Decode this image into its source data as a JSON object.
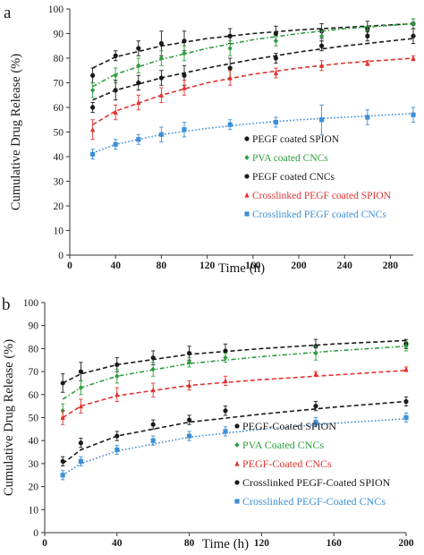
{
  "chart_data": [
    {
      "panel_label": "a",
      "type": "scatter",
      "xlabel": "Time (h)",
      "ylabel": "Cumulative Drug Release (%)",
      "xlim": [
        0,
        300
      ],
      "ylim": [
        0,
        100
      ],
      "xticks": [
        0,
        40,
        80,
        120,
        160,
        200,
        240,
        280
      ],
      "yticks": [
        0,
        10,
        20,
        30,
        40,
        50,
        60,
        70,
        80,
        90,
        100
      ],
      "grid": false,
      "legend_position": "lower-right",
      "series": [
        {
          "name": "PEGF coated SPION",
          "color": "#1a1a1a",
          "marker": "circle",
          "x": [
            20,
            40,
            60,
            80,
            100,
            140,
            180,
            220,
            260,
            300
          ],
          "y": [
            73,
            81,
            84,
            86,
            87,
            89,
            90,
            91,
            92,
            94
          ],
          "err": [
            3,
            2,
            3,
            5,
            4,
            3,
            3,
            3,
            3,
            2
          ],
          "fit": [
            [
              20,
              76
            ],
            [
              40,
              80.5
            ],
            [
              80,
              85
            ],
            [
              120,
              88
            ],
            [
              160,
              90
            ],
            [
              200,
              91.5
            ],
            [
              240,
              92.5
            ],
            [
              300,
              94
            ]
          ]
        },
        {
          "name": "PVA coated CNCs",
          "color": "#2e9e3e",
          "marker": "diamond",
          "x": [
            20,
            40,
            60,
            80,
            100,
            140,
            180,
            220,
            260,
            300
          ],
          "y": [
            67,
            73,
            77,
            80,
            82,
            84,
            87,
            89,
            91,
            94
          ],
          "err": [
            3,
            3,
            3,
            3,
            3,
            3,
            2,
            2,
            2,
            2
          ],
          "fit": [
            [
              20,
              68.5
            ],
            [
              40,
              73.5
            ],
            [
              80,
              79.5
            ],
            [
              120,
              84
            ],
            [
              160,
              87.5
            ],
            [
              200,
              90
            ],
            [
              240,
              92
            ],
            [
              300,
              94
            ]
          ]
        },
        {
          "name": "PEGF coated CNCs",
          "color": "#1a1a1a",
          "marker": "circle",
          "x": [
            20,
            40,
            60,
            80,
            100,
            140,
            180,
            220,
            260,
            300
          ],
          "y": [
            60,
            67,
            70,
            72,
            73,
            76,
            80,
            85,
            89,
            89
          ],
          "err": [
            2,
            4,
            3,
            3,
            4,
            4,
            2,
            2,
            2,
            3
          ],
          "fit": [
            [
              20,
              63
            ],
            [
              40,
              67
            ],
            [
              80,
              72
            ],
            [
              120,
              76
            ],
            [
              160,
              79.5
            ],
            [
              200,
              82.5
            ],
            [
              240,
              85
            ],
            [
              300,
              88
            ]
          ]
        },
        {
          "name": "Crosslinked PEGF coated SPION",
          "color": "#e0332e",
          "marker": "triangle",
          "x": [
            20,
            40,
            60,
            80,
            100,
            140,
            180,
            220,
            260,
            300
          ],
          "y": [
            51,
            58,
            62,
            65,
            68,
            72,
            74,
            77,
            78,
            80
          ],
          "err": [
            4,
            3,
            3,
            3,
            3,
            3,
            2,
            2,
            1,
            1
          ],
          "fit": [
            [
              20,
              53
            ],
            [
              40,
              58.5
            ],
            [
              80,
              65
            ],
            [
              120,
              70
            ],
            [
              160,
              73.5
            ],
            [
              200,
              76
            ],
            [
              240,
              78
            ],
            [
              300,
              80
            ]
          ]
        },
        {
          "name": "Crosslinked PEGF coated CNCs",
          "color": "#3d8fd6",
          "marker": "square",
          "x": [
            20,
            40,
            60,
            80,
            100,
            140,
            180,
            220,
            260,
            300
          ],
          "y": [
            41,
            45,
            47,
            49,
            51,
            53,
            54,
            55,
            56,
            57
          ],
          "err": [
            2,
            2,
            2,
            3,
            3,
            2,
            2,
            6,
            3,
            3
          ],
          "fit": [
            [
              20,
              41.5
            ],
            [
              40,
              45
            ],
            [
              80,
              49
            ],
            [
              120,
              51.5
            ],
            [
              160,
              53.5
            ],
            [
              200,
              55
            ],
            [
              240,
              56
            ],
            [
              300,
              57.5
            ]
          ]
        }
      ]
    },
    {
      "panel_label": "b",
      "type": "scatter",
      "xlabel": "Time (h)",
      "ylabel": "Cumulative Drug Release (%)",
      "xlim": [
        0,
        200
      ],
      "ylim": [
        0,
        100
      ],
      "xticks": [
        0,
        40,
        80,
        120,
        160,
        200
      ],
      "yticks": [
        0,
        10,
        20,
        30,
        40,
        50,
        60,
        70,
        80,
        90,
        100
      ],
      "grid": false,
      "legend_position": "lower-right",
      "series": [
        {
          "name": "PEGF-Coated SPION",
          "color": "#1a1a1a",
          "marker": "circle",
          "x": [
            10,
            20,
            40,
            60,
            80,
            100,
            150,
            200
          ],
          "y": [
            65,
            70,
            73,
            76,
            78,
            79,
            81,
            82
          ],
          "err": [
            4,
            4,
            3,
            3,
            3,
            3,
            3,
            2
          ],
          "fit": [
            [
              10,
              65
            ],
            [
              20,
              69
            ],
            [
              40,
              73
            ],
            [
              80,
              77.5
            ],
            [
              120,
              80
            ],
            [
              160,
              82
            ],
            [
              200,
              83.5
            ]
          ]
        },
        {
          "name": "PVA Coated CNCs",
          "color": "#2e9e3e",
          "marker": "diamond",
          "x": [
            10,
            20,
            40,
            60,
            80,
            100,
            150,
            200
          ],
          "y": [
            53,
            63,
            68,
            71,
            74,
            76,
            78,
            81
          ],
          "err": [
            3,
            3,
            3,
            3,
            2,
            2,
            3,
            2
          ],
          "fit": [
            [
              10,
              58
            ],
            [
              20,
              63
            ],
            [
              40,
              68
            ],
            [
              80,
              73.5
            ],
            [
              120,
              76.5
            ],
            [
              160,
              79
            ],
            [
              200,
              81
            ]
          ]
        },
        {
          "name": "PEGF-Coated CNCs",
          "color": "#e0332e",
          "marker": "triangle",
          "x": [
            10,
            20,
            40,
            60,
            80,
            100,
            150,
            200
          ],
          "y": [
            50,
            55,
            60,
            62,
            64,
            66,
            69,
            71
          ],
          "err": [
            3,
            3,
            3,
            3,
            2,
            2,
            1,
            1
          ],
          "fit": [
            [
              10,
              50
            ],
            [
              20,
              55
            ],
            [
              40,
              59.5
            ],
            [
              80,
              64
            ],
            [
              120,
              66.5
            ],
            [
              160,
              68.5
            ],
            [
              200,
              70.5
            ]
          ]
        },
        {
          "name": "Crosslinked PEGF-Coated SPION",
          "color": "#1a1a1a",
          "marker": "circle",
          "x": [
            10,
            20,
            40,
            60,
            80,
            100,
            150,
            200
          ],
          "y": [
            31,
            39,
            42,
            47,
            49,
            53,
            55,
            57
          ],
          "err": [
            2,
            2,
            2,
            2,
            2,
            2,
            2,
            2
          ],
          "fit": [
            [
              10,
              30
            ],
            [
              20,
              36
            ],
            [
              40,
              42
            ],
            [
              80,
              48
            ],
            [
              120,
              51.5
            ],
            [
              160,
              54.5
            ],
            [
              200,
              57
            ]
          ]
        },
        {
          "name": "Crosslinked PEGF-Coated CNCs",
          "color": "#3d8fd6",
          "marker": "square",
          "x": [
            10,
            20,
            40,
            60,
            80,
            100,
            150,
            200
          ],
          "y": [
            25,
            31,
            36,
            40,
            42,
            44,
            48,
            50
          ],
          "err": [
            2,
            2,
            2,
            2,
            2,
            2,
            2,
            2
          ],
          "fit": [
            [
              10,
              25
            ],
            [
              20,
              30
            ],
            [
              40,
              35.5
            ],
            [
              80,
              41.5
            ],
            [
              120,
              45
            ],
            [
              160,
              47.5
            ],
            [
              200,
              49.5
            ]
          ]
        }
      ]
    }
  ]
}
